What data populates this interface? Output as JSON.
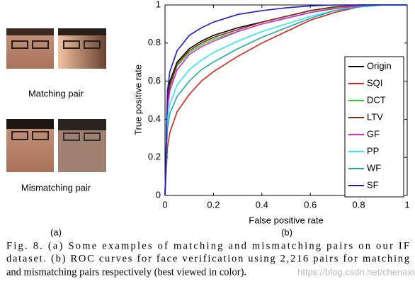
{
  "panel_a": {
    "labels": [
      "Matching pair",
      "Mismatching pair"
    ],
    "tag": "(a)"
  },
  "panel_b_tag": "(b)",
  "chart_data": {
    "type": "line",
    "x_label": "False positive rate",
    "y_label": "True positive rate",
    "x": [
      0,
      0.01,
      0.02,
      0.05,
      0.1,
      0.15,
      0.2,
      0.3,
      0.4,
      0.5,
      0.6,
      0.7,
      0.8,
      0.9,
      1
    ],
    "series": [
      {
        "name": "Origin",
        "color": "#000000",
        "values": [
          0,
          0.5,
          0.6,
          0.7,
          0.77,
          0.81,
          0.84,
          0.88,
          0.91,
          0.94,
          0.97,
          0.99,
          1,
          1,
          1
        ]
      },
      {
        "name": "SQI",
        "color": "#e0201a",
        "values": [
          0,
          0.25,
          0.33,
          0.44,
          0.53,
          0.6,
          0.65,
          0.73,
          0.8,
          0.86,
          0.92,
          0.96,
          0.99,
          1,
          1
        ]
      },
      {
        "name": "DCT",
        "color": "#22dd22",
        "values": [
          0,
          0.47,
          0.57,
          0.68,
          0.75,
          0.79,
          0.82,
          0.86,
          0.9,
          0.93,
          0.96,
          0.985,
          1,
          1,
          1
        ]
      },
      {
        "name": "LTV",
        "color": "#8b2a0a",
        "values": [
          0,
          0.48,
          0.58,
          0.69,
          0.76,
          0.8,
          0.83,
          0.87,
          0.91,
          0.94,
          0.97,
          0.99,
          1,
          1,
          1
        ]
      },
      {
        "name": "GF",
        "color": "#e020e0",
        "values": [
          0,
          0.45,
          0.55,
          0.66,
          0.74,
          0.78,
          0.81,
          0.86,
          0.9,
          0.93,
          0.96,
          0.98,
          0.995,
          1,
          1
        ]
      },
      {
        "name": "PP",
        "color": "#30e8f0",
        "values": [
          0,
          0.4,
          0.48,
          0.58,
          0.66,
          0.71,
          0.75,
          0.81,
          0.86,
          0.9,
          0.94,
          0.97,
          0.99,
          1,
          1
        ]
      },
      {
        "name": "WF",
        "color": "#20a8a8",
        "values": [
          0,
          0.35,
          0.43,
          0.52,
          0.6,
          0.66,
          0.7,
          0.77,
          0.83,
          0.88,
          0.93,
          0.97,
          0.99,
          1,
          1
        ]
      },
      {
        "name": "SF",
        "color": "#1a1ad0",
        "values": [
          0,
          0.55,
          0.65,
          0.76,
          0.84,
          0.88,
          0.91,
          0.95,
          0.97,
          0.985,
          0.995,
          1,
          1,
          1,
          1
        ]
      }
    ],
    "xlim": [
      0,
      1
    ],
    "ylim": [
      0,
      1
    ],
    "xticks": [
      0,
      0.2,
      0.4,
      0.6,
      0.8,
      1
    ],
    "yticks": [
      0,
      0.2,
      0.4,
      0.6,
      0.8,
      1
    ],
    "legend": "right"
  },
  "caption": {
    "lines": [
      "Fig. 8.  (a) Some examples of matching and mismatching pairs on our IF",
      "dataset. (b) ROC curves for face verification using 2,216 pairs for matching",
      "and mismatching pairs respectively (best viewed in color)."
    ]
  },
  "watermark": "https://blog.csdn.net/chenaxin"
}
